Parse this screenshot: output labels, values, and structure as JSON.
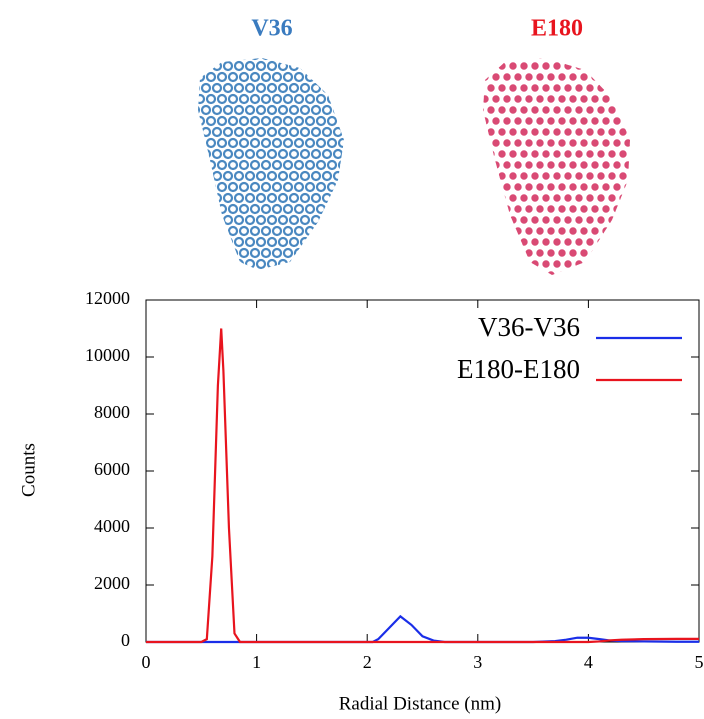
{
  "panels": [
    {
      "label": "V36"
    },
    {
      "label": "E180"
    }
  ],
  "chart_data": {
    "type": "line",
    "x": [
      0,
      0.5,
      0.55,
      0.6,
      0.65,
      0.68,
      0.7,
      0.75,
      0.8,
      0.85,
      1,
      2,
      2.05,
      2.1,
      2.2,
      2.3,
      2.4,
      2.5,
      2.6,
      2.7,
      3,
      3.5,
      3.7,
      3.8,
      3.9,
      4,
      4.1,
      4.2,
      4.3,
      4.5,
      4.8,
      5
    ],
    "series": [
      {
        "name": "V36-V36",
        "color": "#1a2ee8",
        "values": [
          0,
          0,
          0,
          0,
          0,
          0,
          0,
          0,
          0,
          0,
          0,
          0,
          0,
          100,
          500,
          900,
          600,
          200,
          50,
          0,
          0,
          0,
          30,
          80,
          150,
          150,
          100,
          50,
          30,
          20,
          10,
          10
        ]
      },
      {
        "name": "E180-E180",
        "color": "#e8141e",
        "values": [
          0,
          0,
          100,
          3000,
          9000,
          11000,
          9500,
          4000,
          300,
          0,
          0,
          0,
          0,
          0,
          0,
          0,
          0,
          0,
          0,
          0,
          0,
          0,
          0,
          0,
          0,
          0,
          20,
          60,
          80,
          100,
          110,
          110
        ]
      }
    ],
    "xlabel": "Radial Distance (nm)",
    "ylabel": "Counts",
    "xlim": [
      0,
      5
    ],
    "ylim": [
      0,
      12000
    ],
    "xticks": [
      0,
      1,
      2,
      3,
      4,
      5
    ],
    "yticks": [
      0,
      2000,
      4000,
      6000,
      8000,
      10000,
      12000
    ],
    "legend": "upper right"
  }
}
